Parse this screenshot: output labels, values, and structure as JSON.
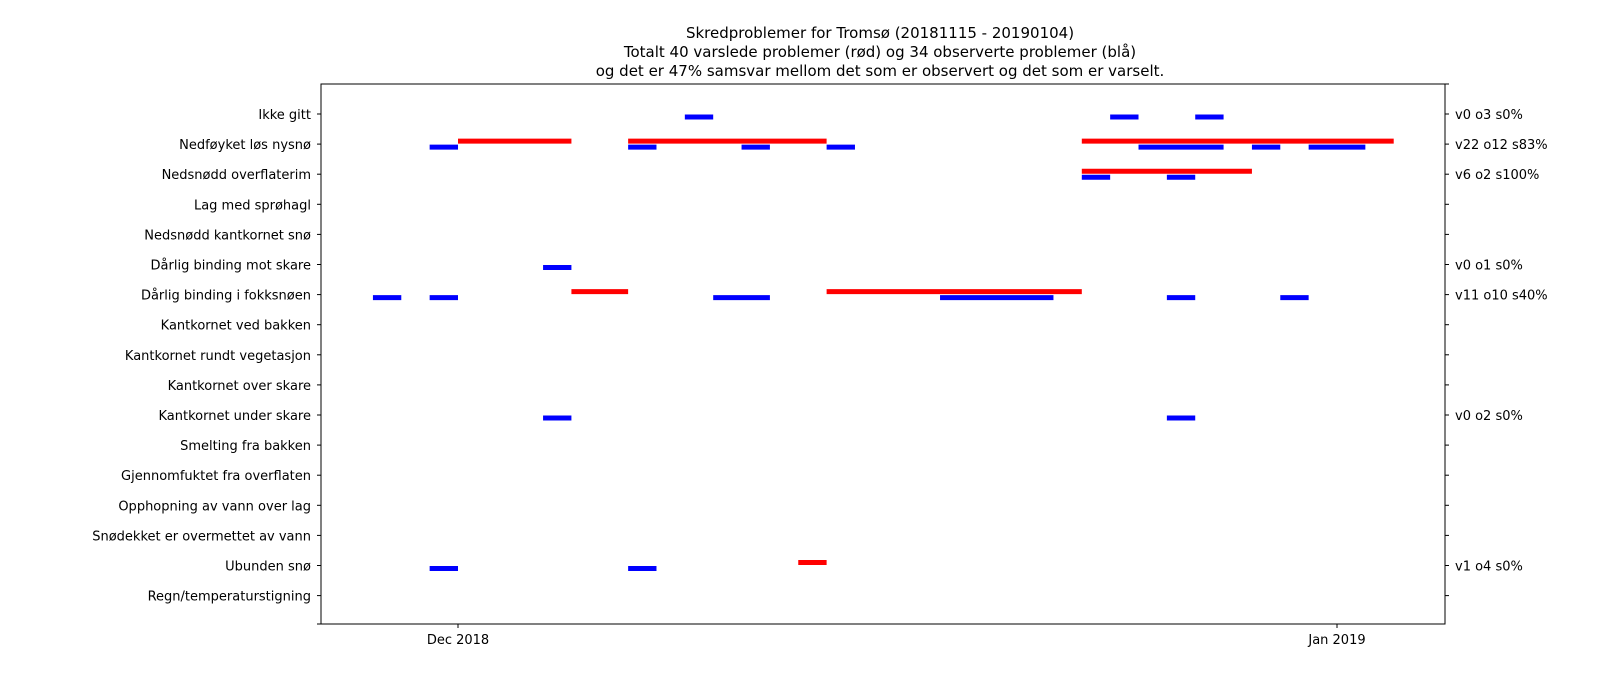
{
  "chart_data": {
    "type": "timeline",
    "title_lines": [
      "Skredproblemer for Tromsø (20181115 - 20190104)",
      "Totalt 40 varslede problemer (rød) og 34 observerte problemer (blå)",
      "og det er 47% samsvar mellom det som er observert og det som er varselt."
    ],
    "x_range": [
      "2018-11-15",
      "2019-01-04"
    ],
    "x_ticks": [
      {
        "date": "2018-12-01",
        "label": "Dec 2018"
      },
      {
        "date": "2019-01-01",
        "label": "Jan 2019"
      }
    ],
    "categories": [
      "Ikke gitt",
      "Nedføyket løs nysnø",
      "Nedsnødd overflaterim",
      "Lag med sprøhagl",
      "Nedsnødd kantkornet snø",
      "Dårlig binding mot skare",
      "Dårlig binding i fokksnøen",
      "Kantkornet ved bakken",
      "Kantkornet rundt vegetasjon",
      "Kantkornet over skare",
      "Kantkornet under skare",
      "Smelting fra bakken",
      "Gjennomfuktet fra overflaten",
      "Opphopning av vann over lag",
      "Snødekket er overmettet av vann",
      "Ubunden snø",
      "Regn/temperaturstigning"
    ],
    "right_labels": [
      "v0 o3 s0%",
      "v22 o12 s83%",
      "v6 o2 s100%",
      "",
      "",
      "v0 o1 s0%",
      "v11 o10 s40%",
      "",
      "",
      "",
      "v0 o2 s0%",
      "",
      "",
      "",
      "",
      "v1 o4 s0%",
      ""
    ],
    "series": [
      {
        "name": "varslet",
        "color": "#ff0000",
        "segments": [
          {
            "row": 1,
            "start": "2018-12-01",
            "end": "2018-12-05"
          },
          {
            "row": 1,
            "start": "2018-12-07",
            "end": "2018-12-14"
          },
          {
            "row": 1,
            "start": "2018-12-23",
            "end": "2019-01-03"
          },
          {
            "row": 2,
            "start": "2018-12-23",
            "end": "2018-12-29"
          },
          {
            "row": 6,
            "start": "2018-12-05",
            "end": "2018-12-07"
          },
          {
            "row": 6,
            "start": "2018-12-14",
            "end": "2018-12-23"
          },
          {
            "row": 15,
            "start": "2018-12-13",
            "end": "2018-12-14"
          }
        ]
      },
      {
        "name": "observert",
        "color": "#0000ff",
        "segments": [
          {
            "row": 0,
            "start": "2018-12-09",
            "end": "2018-12-10"
          },
          {
            "row": 0,
            "start": "2018-12-24",
            "end": "2018-12-25"
          },
          {
            "row": 0,
            "start": "2018-12-27",
            "end": "2018-12-28"
          },
          {
            "row": 1,
            "start": "2018-11-30",
            "end": "2018-12-01"
          },
          {
            "row": 1,
            "start": "2018-12-07",
            "end": "2018-12-08"
          },
          {
            "row": 1,
            "start": "2018-12-11",
            "end": "2018-12-12"
          },
          {
            "row": 1,
            "start": "2018-12-14",
            "end": "2018-12-15"
          },
          {
            "row": 1,
            "start": "2018-12-25",
            "end": "2018-12-28"
          },
          {
            "row": 1,
            "start": "2018-12-29",
            "end": "2018-12-30"
          },
          {
            "row": 1,
            "start": "2018-12-31",
            "end": "2019-01-02"
          },
          {
            "row": 2,
            "start": "2018-12-23",
            "end": "2018-12-24"
          },
          {
            "row": 2,
            "start": "2018-12-26",
            "end": "2018-12-27"
          },
          {
            "row": 5,
            "start": "2018-12-04",
            "end": "2018-12-05"
          },
          {
            "row": 6,
            "start": "2018-11-28",
            "end": "2018-11-29"
          },
          {
            "row": 6,
            "start": "2018-11-30",
            "end": "2018-12-01"
          },
          {
            "row": 6,
            "start": "2018-12-10",
            "end": "2018-12-12"
          },
          {
            "row": 6,
            "start": "2018-12-18",
            "end": "2018-12-22"
          },
          {
            "row": 6,
            "start": "2018-12-26",
            "end": "2018-12-27"
          },
          {
            "row": 6,
            "start": "2018-12-30",
            "end": "2018-12-31"
          },
          {
            "row": 10,
            "start": "2018-12-04",
            "end": "2018-12-05"
          },
          {
            "row": 10,
            "start": "2018-12-26",
            "end": "2018-12-27"
          },
          {
            "row": 15,
            "start": "2018-11-30",
            "end": "2018-12-01"
          },
          {
            "row": 15,
            "start": "2018-12-07",
            "end": "2018-12-08"
          }
        ]
      }
    ],
    "grid": false,
    "legend": "none"
  }
}
